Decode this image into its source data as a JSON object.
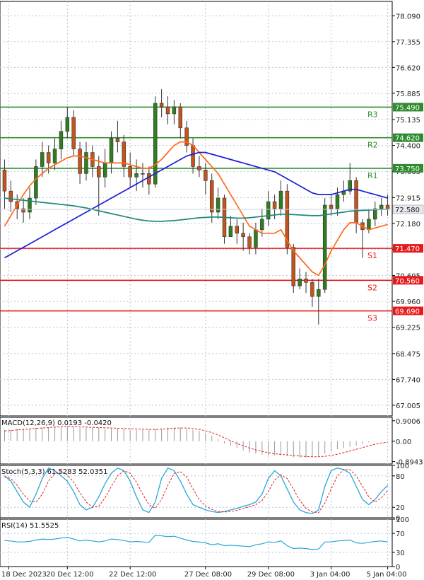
{
  "chart_data": [
    {
      "type": "candlestick",
      "panel": "price",
      "ylim": [
        66.7,
        78.5
      ],
      "y_ticks": [
        "78.090",
        "77.355",
        "76.620",
        "75.885",
        "75.135",
        "74.400",
        "73.665",
        "72.915",
        "72.180",
        "71.445",
        "70.695",
        "69.960",
        "69.225",
        "68.475",
        "67.740",
        "67.005"
      ],
      "y_tick_values": [
        78.09,
        77.355,
        76.62,
        75.885,
        75.135,
        74.4,
        73.665,
        72.915,
        72.18,
        71.445,
        70.695,
        69.96,
        69.225,
        68.475,
        67.74,
        67.005
      ],
      "x_ticks": [
        "18 Dec 2023",
        "20 Dec 12:00",
        "22 Dec 12:00",
        "27 Dec 08:00",
        "29 Dec 08:00",
        "3 Jan 04:00",
        "5 Jan 04:00"
      ],
      "current_price": "72.580",
      "current_price_value": 72.58,
      "levels": [
        {
          "name": "R3",
          "value": 75.49,
          "label": "75.490",
          "color": "#2e8b2e"
        },
        {
          "name": "R2",
          "value": 74.62,
          "label": "74.620",
          "color": "#2e8b2e"
        },
        {
          "name": "R1",
          "value": 73.75,
          "label": "73.750",
          "color": "#2e8b2e"
        },
        {
          "name": "S1",
          "value": 71.47,
          "label": "71.470",
          "color": "#e8191b"
        },
        {
          "name": "S2",
          "value": 70.56,
          "label": "70.560",
          "color": "#e8191b"
        },
        {
          "name": "S3",
          "value": 69.69,
          "label": "69.690",
          "color": "#e8191b"
        }
      ],
      "candles": [
        [
          73.7,
          73.1,
          74.0,
          72.6
        ],
        [
          73.1,
          72.8,
          73.4,
          72.5
        ],
        [
          72.8,
          72.6,
          73.0,
          72.3
        ],
        [
          72.6,
          72.5,
          72.9,
          72.2
        ],
        [
          72.5,
          72.9,
          73.2,
          72.3
        ],
        [
          72.9,
          73.8,
          74.0,
          72.7
        ],
        [
          73.8,
          74.2,
          74.5,
          73.5
        ],
        [
          74.2,
          73.9,
          74.4,
          73.6
        ],
        [
          73.9,
          74.3,
          74.6,
          73.7
        ],
        [
          74.3,
          74.8,
          75.1,
          74.0
        ],
        [
          74.8,
          75.2,
          75.5,
          74.6
        ],
        [
          75.2,
          74.3,
          75.4,
          74.1
        ],
        [
          74.3,
          73.6,
          74.5,
          73.3
        ],
        [
          73.6,
          74.2,
          74.5,
          73.4
        ],
        [
          74.2,
          73.8,
          74.4,
          73.5
        ],
        [
          73.8,
          73.5,
          74.1,
          72.4
        ],
        [
          73.5,
          73.9,
          74.3,
          73.2
        ],
        [
          73.9,
          74.6,
          74.8,
          73.6
        ],
        [
          74.6,
          74.5,
          75.1,
          74.2
        ],
        [
          74.5,
          73.8,
          74.7,
          73.5
        ],
        [
          73.8,
          73.5,
          74.2,
          73.2
        ],
        [
          73.5,
          73.6,
          74.0,
          73.1
        ],
        [
          73.6,
          73.6,
          73.9,
          73.2
        ],
        [
          73.6,
          73.3,
          73.8,
          73.0
        ],
        [
          73.3,
          75.6,
          75.8,
          73.2
        ],
        [
          75.6,
          75.5,
          76.0,
          75.2
        ],
        [
          75.5,
          75.3,
          75.8,
          75.0
        ],
        [
          75.3,
          75.5,
          75.7,
          75.0
        ],
        [
          75.5,
          74.9,
          75.6,
          74.6
        ],
        [
          74.9,
          74.4,
          75.1,
          74.2
        ],
        [
          74.4,
          73.8,
          74.6,
          73.6
        ],
        [
          73.8,
          73.7,
          74.1,
          73.5
        ],
        [
          73.7,
          73.4,
          73.9,
          73.0
        ],
        [
          73.4,
          72.5,
          73.6,
          72.2
        ],
        [
          72.5,
          72.9,
          73.2,
          72.3
        ],
        [
          72.9,
          71.8,
          73.0,
          71.6
        ],
        [
          71.8,
          72.1,
          72.4,
          71.8
        ],
        [
          72.1,
          71.9,
          72.3,
          71.6
        ],
        [
          71.9,
          71.8,
          72.2,
          71.4
        ],
        [
          71.8,
          71.5,
          71.9,
          71.3
        ],
        [
          71.5,
          72.0,
          72.2,
          71.3
        ],
        [
          72.0,
          72.3,
          72.6,
          71.8
        ],
        [
          72.3,
          72.8,
          73.1,
          72.1
        ],
        [
          72.8,
          72.6,
          73.0,
          72.3
        ],
        [
          72.6,
          73.1,
          73.4,
          72.4
        ],
        [
          73.1,
          71.5,
          73.3,
          71.3
        ],
        [
          71.5,
          70.4,
          71.6,
          70.2
        ],
        [
          70.4,
          70.6,
          70.9,
          70.3
        ],
        [
          70.6,
          70.5,
          70.8,
          70.2
        ],
        [
          70.5,
          70.1,
          70.6,
          69.8
        ],
        [
          70.1,
          70.3,
          70.6,
          69.3
        ],
        [
          70.3,
          72.7,
          72.9,
          70.2
        ],
        [
          72.7,
          72.6,
          73.0,
          72.4
        ],
        [
          72.6,
          73.0,
          73.2,
          72.4
        ],
        [
          73.0,
          73.1,
          73.4,
          72.8
        ],
        [
          73.1,
          73.4,
          73.9,
          73.0
        ],
        [
          73.4,
          72.2,
          73.5,
          71.9
        ],
        [
          72.2,
          72.0,
          72.3,
          71.2
        ],
        [
          72.0,
          72.3,
          72.6,
          71.9
        ],
        [
          72.3,
          72.6,
          72.8,
          72.1
        ],
        [
          72.6,
          72.7,
          72.9,
          72.4
        ],
        [
          72.7,
          72.58,
          73.0,
          72.4
        ]
      ],
      "series": [
        {
          "name": "",
          "color": "#ff6a1a",
          "values": [
            72.1,
            72.4,
            72.7,
            73.0,
            73.25,
            73.45,
            73.6,
            73.75,
            73.85,
            73.95,
            74.05,
            74.1,
            74.1,
            74.05,
            74.0,
            73.95,
            73.9,
            73.9,
            73.9,
            73.9,
            73.85,
            73.8,
            73.75,
            73.75,
            73.85,
            74.0,
            74.2,
            74.4,
            74.5,
            74.5,
            74.4,
            74.2,
            74.0,
            73.8,
            73.6,
            73.3,
            73.0,
            72.7,
            72.4,
            72.1,
            72.0,
            71.9,
            71.9,
            71.9,
            72.0,
            71.7,
            71.4,
            71.2,
            71.0,
            70.8,
            70.7,
            71.0,
            71.4,
            71.7,
            72.0,
            72.2,
            72.2,
            72.1,
            72.0,
            72.05,
            72.1,
            72.15
          ]
        },
        {
          "name": "",
          "color": "#1c1fd6",
          "values": [
            71.2,
            71.3,
            71.4,
            71.5,
            71.6,
            71.7,
            71.8,
            71.9,
            72.0,
            72.1,
            72.2,
            72.3,
            72.4,
            72.5,
            72.6,
            72.7,
            72.8,
            72.9,
            73.0,
            73.1,
            73.2,
            73.3,
            73.4,
            73.5,
            73.6,
            73.7,
            73.8,
            73.9,
            74.0,
            74.1,
            74.15,
            74.2,
            74.2,
            74.15,
            74.1,
            74.05,
            74.0,
            73.95,
            73.9,
            73.85,
            73.8,
            73.75,
            73.7,
            73.65,
            73.55,
            73.45,
            73.35,
            73.25,
            73.15,
            73.05,
            73.0,
            73.0,
            73.0,
            73.05,
            73.1,
            73.15,
            73.15,
            73.1,
            73.05,
            73.0,
            72.95,
            72.9
          ]
        },
        {
          "name": "",
          "color": "#1e8a7c",
          "values": [
            72.9,
            72.88,
            72.86,
            72.84,
            72.82,
            72.8,
            72.78,
            72.76,
            72.74,
            72.72,
            72.7,
            72.68,
            72.65,
            72.62,
            72.58,
            72.54,
            72.5,
            72.46,
            72.42,
            72.38,
            72.34,
            72.3,
            72.27,
            72.25,
            72.24,
            72.24,
            72.25,
            72.26,
            72.28,
            72.3,
            72.32,
            72.34,
            72.35,
            72.36,
            72.36,
            72.35,
            72.34,
            72.33,
            72.33,
            72.34,
            72.36,
            72.38,
            72.4,
            72.42,
            72.44,
            72.44,
            72.43,
            72.42,
            72.41,
            72.4,
            72.4,
            72.42,
            72.45,
            72.48,
            72.5,
            72.53,
            72.54,
            72.55,
            72.56,
            72.57,
            72.58,
            72.58
          ]
        }
      ]
    },
    {
      "type": "bar+line",
      "panel": "macd",
      "title": "MACD(12,26,9) 0.0193 -0.0420",
      "ylim": [
        -1.0,
        1.05
      ],
      "y_ticks": [
        "0.9006",
        "0.00",
        "-0.8943"
      ],
      "y_tick_values": [
        0.9006,
        0.0,
        -0.8943
      ],
      "series": [
        {
          "name": "",
          "color": "#999999",
          "values": [
            0.5,
            0.5,
            0.55,
            0.55,
            0.55,
            0.6,
            0.6,
            0.6,
            0.65,
            0.65,
            0.65,
            0.65,
            0.6,
            0.6,
            0.6,
            0.6,
            0.55,
            0.55,
            0.55,
            0.55,
            0.5,
            0.5,
            0.5,
            0.5,
            0.55,
            0.55,
            0.6,
            0.6,
            0.6,
            0.55,
            0.5,
            0.45,
            0.35,
            0.25,
            0.1,
            -0.1,
            -0.2,
            -0.3,
            -0.4,
            -0.5,
            -0.55,
            -0.6,
            -0.62,
            -0.62,
            -0.62,
            -0.65,
            -0.7,
            -0.72,
            -0.72,
            -0.7,
            -0.65,
            -0.55,
            -0.45,
            -0.35,
            -0.3,
            -0.25,
            -0.2,
            -0.12,
            -0.05,
            0.0,
            0.02,
            0.02
          ]
        },
        {
          "name": "",
          "color": "#e02020",
          "values": [
            0.45,
            0.47,
            0.5,
            0.52,
            0.54,
            0.56,
            0.58,
            0.6,
            0.62,
            0.63,
            0.64,
            0.64,
            0.63,
            0.62,
            0.61,
            0.6,
            0.59,
            0.58,
            0.57,
            0.56,
            0.55,
            0.54,
            0.53,
            0.52,
            0.52,
            0.53,
            0.55,
            0.57,
            0.58,
            0.58,
            0.56,
            0.52,
            0.46,
            0.38,
            0.28,
            0.15,
            0.02,
            -0.1,
            -0.2,
            -0.3,
            -0.38,
            -0.45,
            -0.5,
            -0.55,
            -0.58,
            -0.6,
            -0.63,
            -0.65,
            -0.67,
            -0.68,
            -0.68,
            -0.66,
            -0.62,
            -0.57,
            -0.5,
            -0.43,
            -0.35,
            -0.28,
            -0.2,
            -0.13,
            -0.08,
            -0.04
          ]
        }
      ]
    },
    {
      "type": "line",
      "panel": "stoch",
      "title": "Stoch(5,3,3) 61.5283 52.0351",
      "ylim": [
        0,
        100
      ],
      "y_ticks": [
        "100",
        "80",
        "20",
        "0"
      ],
      "y_tick_values": [
        100,
        80,
        20,
        0
      ],
      "series": [
        {
          "name": "",
          "color": "#2aa6d6",
          "values": [
            80,
            70,
            50,
            30,
            20,
            45,
            75,
            95,
            90,
            80,
            70,
            50,
            25,
            15,
            20,
            40,
            65,
            85,
            95,
            90,
            70,
            40,
            15,
            10,
            30,
            75,
            95,
            90,
            70,
            45,
            25,
            20,
            15,
            12,
            10,
            12,
            15,
            18,
            22,
            25,
            30,
            45,
            75,
            90,
            80,
            55,
            30,
            15,
            10,
            8,
            15,
            60,
            90,
            95,
            92,
            85,
            60,
            35,
            25,
            35,
            50,
            62
          ]
        },
        {
          "name": "",
          "color": "#e02020",
          "values": [
            78,
            75,
            62,
            45,
            32,
            30,
            45,
            70,
            85,
            88,
            82,
            68,
            48,
            30,
            20,
            22,
            38,
            60,
            80,
            90,
            85,
            68,
            45,
            25,
            18,
            35,
            62,
            85,
            88,
            78,
            55,
            35,
            22,
            16,
            12,
            11,
            12,
            14,
            18,
            21,
            25,
            33,
            50,
            72,
            82,
            75,
            55,
            33,
            18,
            11,
            10,
            28,
            55,
            80,
            92,
            92,
            80,
            60,
            40,
            30,
            38,
            52
          ]
        }
      ]
    },
    {
      "type": "line",
      "panel": "rsi",
      "title": "RSI(14) 51.5525",
      "ylim": [
        0,
        100
      ],
      "y_ticks": [
        "100",
        "70",
        "30",
        "0"
      ],
      "y_tick_values": [
        100,
        70,
        30,
        0
      ],
      "series": [
        {
          "name": "",
          "color": "#2aa6d6",
          "values": [
            55,
            54,
            52,
            52,
            53,
            56,
            58,
            57,
            58,
            60,
            62,
            58,
            54,
            56,
            54,
            52,
            54,
            58,
            57,
            55,
            52,
            53,
            52,
            51,
            66,
            65,
            63,
            64,
            60,
            56,
            53,
            52,
            50,
            46,
            48,
            44,
            45,
            44,
            43,
            42,
            46,
            48,
            52,
            51,
            54,
            44,
            38,
            39,
            38,
            36,
            37,
            52,
            52,
            54,
            55,
            56,
            50,
            49,
            51,
            53,
            54,
            51.5
          ]
        }
      ]
    }
  ]
}
